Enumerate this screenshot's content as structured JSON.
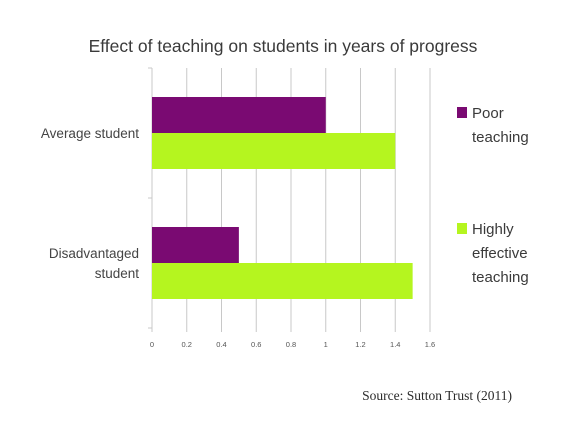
{
  "colors": {
    "poor": "#7a0a72",
    "highly": "#b5f51f",
    "axis": "#c8c8c8",
    "text": "#3a3a3a"
  },
  "chart_data": {
    "type": "bar",
    "orientation": "horizontal",
    "title": "Effect of teaching on students in years of progress",
    "categories": [
      [
        "Average student"
      ],
      [
        "Disadvantaged",
        "student"
      ]
    ],
    "series": [
      {
        "name": [
          "Poor",
          "teaching"
        ],
        "color": "#7a0a72",
        "values": [
          1.0,
          0.5
        ]
      },
      {
        "name": [
          "Highly",
          "effective",
          "teaching"
        ],
        "color": "#b5f51f",
        "values": [
          1.4,
          1.5
        ]
      }
    ],
    "xlim": [
      0,
      1.6
    ],
    "xticks": [
      "0",
      "0.2",
      "0.4",
      "0.6",
      "0.8",
      "1",
      "1.2",
      "1.4",
      "1.6"
    ],
    "grid": "vertical",
    "legend": "right"
  },
  "source": "Source: Sutton Trust (2011)"
}
